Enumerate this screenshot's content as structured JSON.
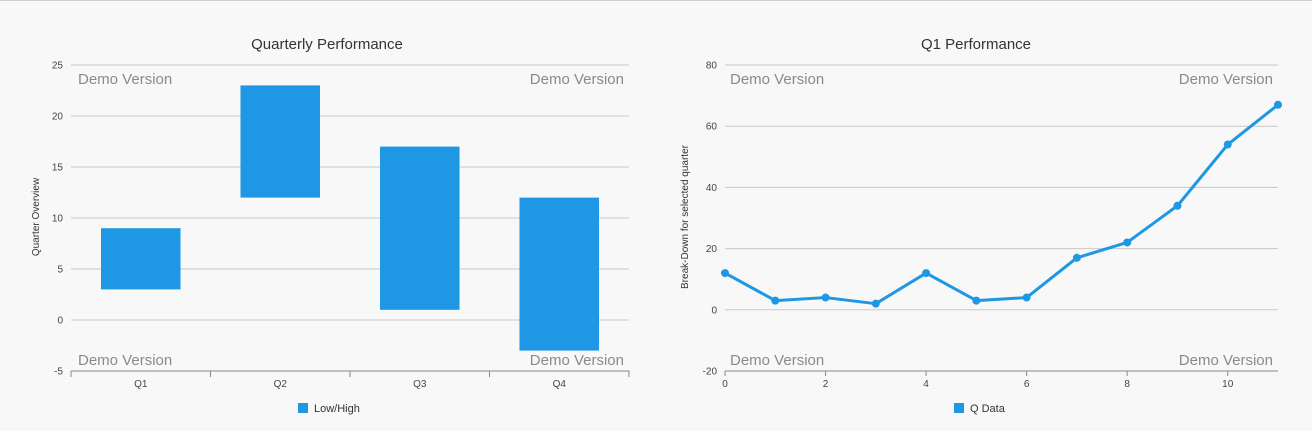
{
  "colors": {
    "series": "#1e97e4",
    "grid": "#c8c8c8",
    "background": "#f8f8f8"
  },
  "chart_data": [
    {
      "type": "bar",
      "subtype": "floating-range",
      "title": "Quarterly Performance",
      "ylabel": "Quarter Overview",
      "categories": [
        "Q1",
        "Q2",
        "Q3",
        "Q4"
      ],
      "series": [
        {
          "name": "Low/High",
          "ranges": [
            [
              3,
              9
            ],
            [
              12,
              23
            ],
            [
              1,
              17
            ],
            [
              -3,
              12
            ]
          ]
        }
      ],
      "ylim": [
        -5,
        25
      ],
      "yticks": [
        "25",
        "20",
        "15",
        "10",
        "5",
        "0",
        "-5"
      ],
      "grid": true,
      "legend": "bottom-center",
      "watermark": "Demo Version"
    },
    {
      "type": "line",
      "title": "Q1 Performance",
      "ylabel": "Break-Down for selected quarter",
      "x": [
        0,
        1,
        2,
        3,
        4,
        5,
        6,
        7,
        8,
        9,
        10,
        11
      ],
      "series": [
        {
          "name": "Q Data",
          "values": [
            12,
            3,
            4,
            2,
            12,
            3,
            4,
            17,
            22,
            34,
            54,
            67
          ]
        }
      ],
      "xlim": [
        0,
        11
      ],
      "ylim": [
        -20,
        80
      ],
      "xticks": [
        "0",
        "2",
        "4",
        "6",
        "8",
        "10"
      ],
      "yticks": [
        "80",
        "60",
        "40",
        "20",
        "0",
        "-20"
      ],
      "grid": true,
      "legend": "bottom-center",
      "watermark": "Demo Version"
    }
  ]
}
